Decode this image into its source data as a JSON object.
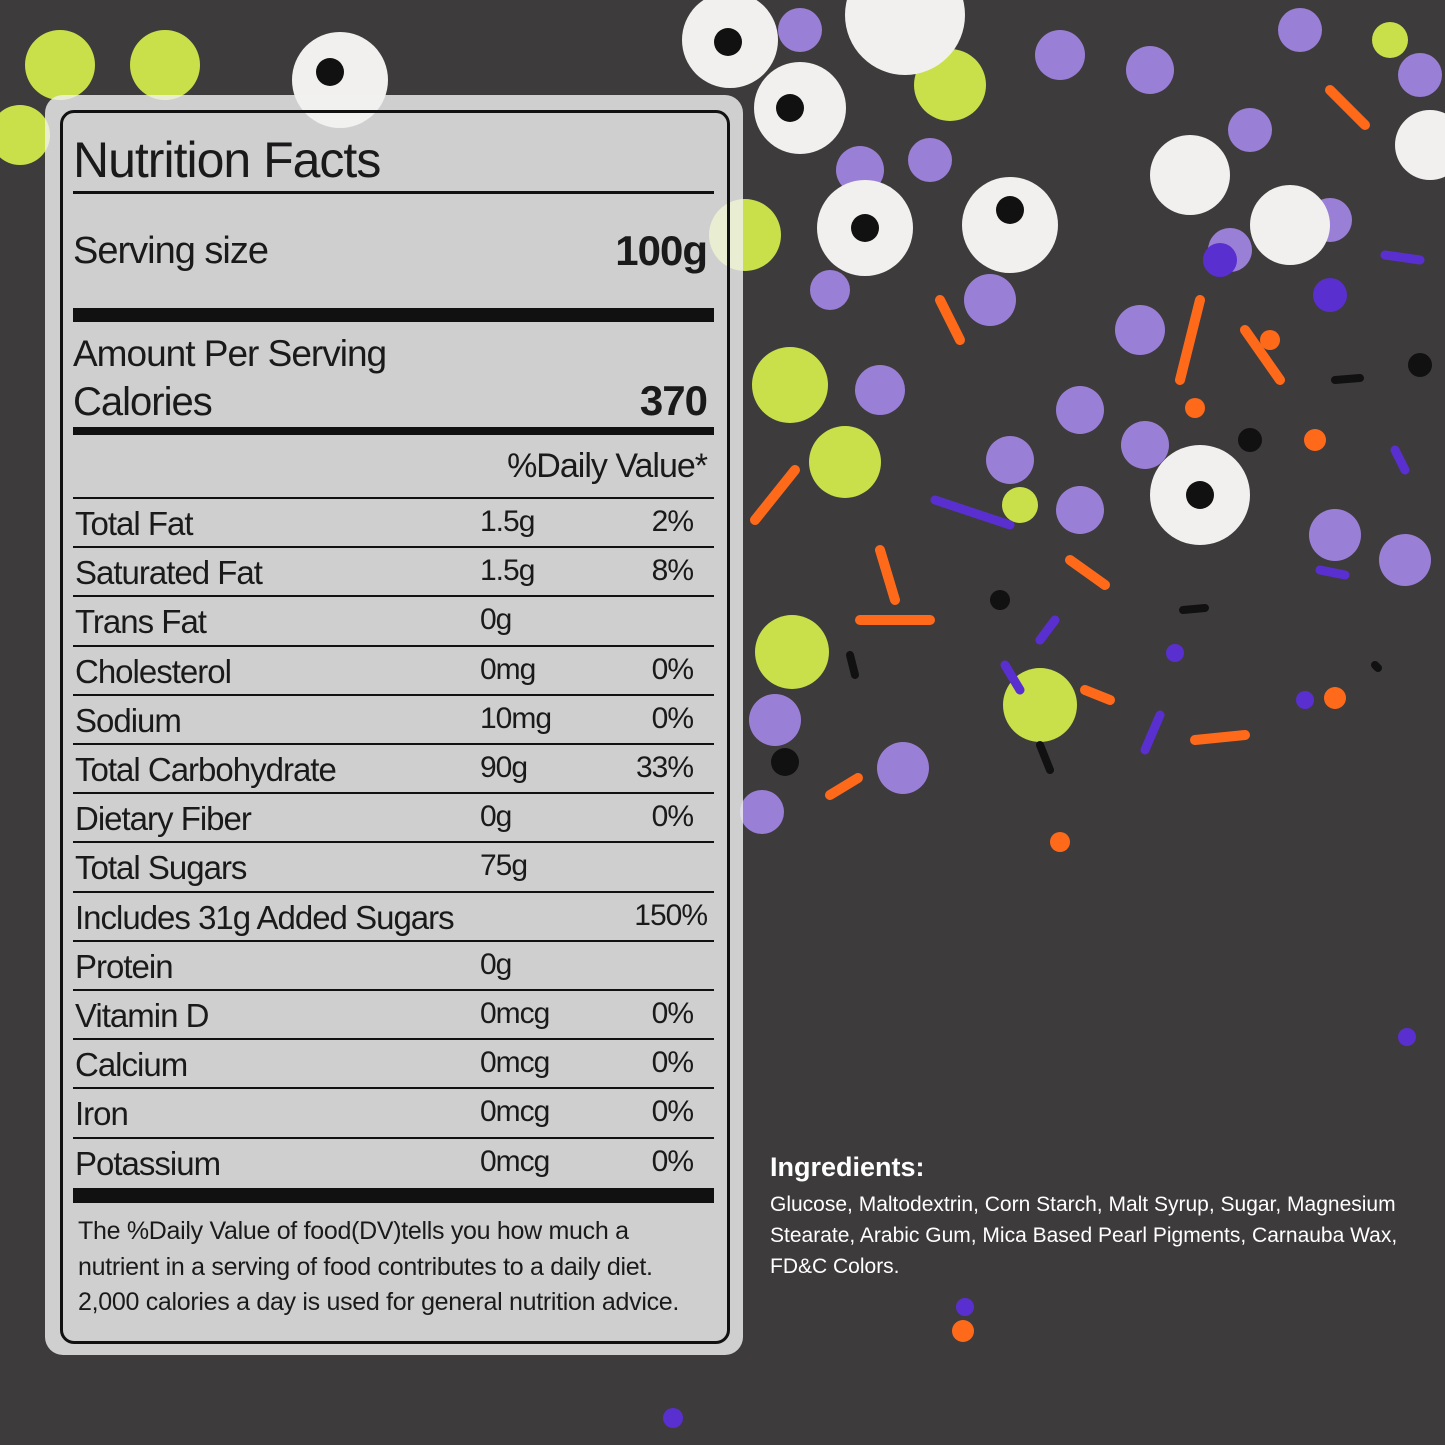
{
  "nutrition_facts": {
    "title": "Nutrition Facts",
    "serving_size_label": "Serving size",
    "serving_size": "100g",
    "amount_per_serving": "Amount Per Serving",
    "calories_label": "Calories",
    "calories": 370,
    "daily_value_header": "%Daily Value*",
    "rows": [
      {
        "name": "Total Fat",
        "amount": "1.5g",
        "dv": "2%"
      },
      {
        "name": "Saturated Fat",
        "amount": "1.5g",
        "dv": "8%"
      },
      {
        "name": "Trans Fat",
        "amount": "0g"
      },
      {
        "name": "Cholesterol",
        "amount": "0mg",
        "dv": "0%"
      },
      {
        "name": "Sodium",
        "amount": "10mg",
        "dv": "0%"
      },
      {
        "name": "Total Carbohydrate",
        "amount": "90g",
        "dv": "33%"
      },
      {
        "name": "Dietary Fiber",
        "amount": "0g",
        "dv": "0%"
      },
      {
        "name": "Total Sugars",
        "amount": "75g"
      },
      {
        "name": "Includes 31g Added Sugars",
        "dv": "150%"
      },
      {
        "name": "Protein",
        "amount": "0g"
      },
      {
        "name": "Vitamin D",
        "amount": "0mcg",
        "dv": "0%"
      },
      {
        "name": "Calcium",
        "amount": "0mcg",
        "dv": "0%"
      },
      {
        "name": "Iron",
        "amount": "0mcg",
        "dv": "0%"
      },
      {
        "name": "Potassium",
        "amount": "0mcg",
        "dv": "0%"
      }
    ],
    "footnote": [
      "The %Daily Value of food(DV)tells you how much a",
      "nutrient in a serving of food contributes to a daily diet.",
      "2,000 calories a day is used for general nutrition advice."
    ]
  },
  "ingredients": {
    "title": "Ingredients:",
    "text": "Glucose, Maltodextrin, Corn Starch, Malt Syrup, Sugar, Magnesium Stearate, Arabic Gum, Mica Based Pearl Pigments, Carnauba Wax, FD&C Colors."
  }
}
